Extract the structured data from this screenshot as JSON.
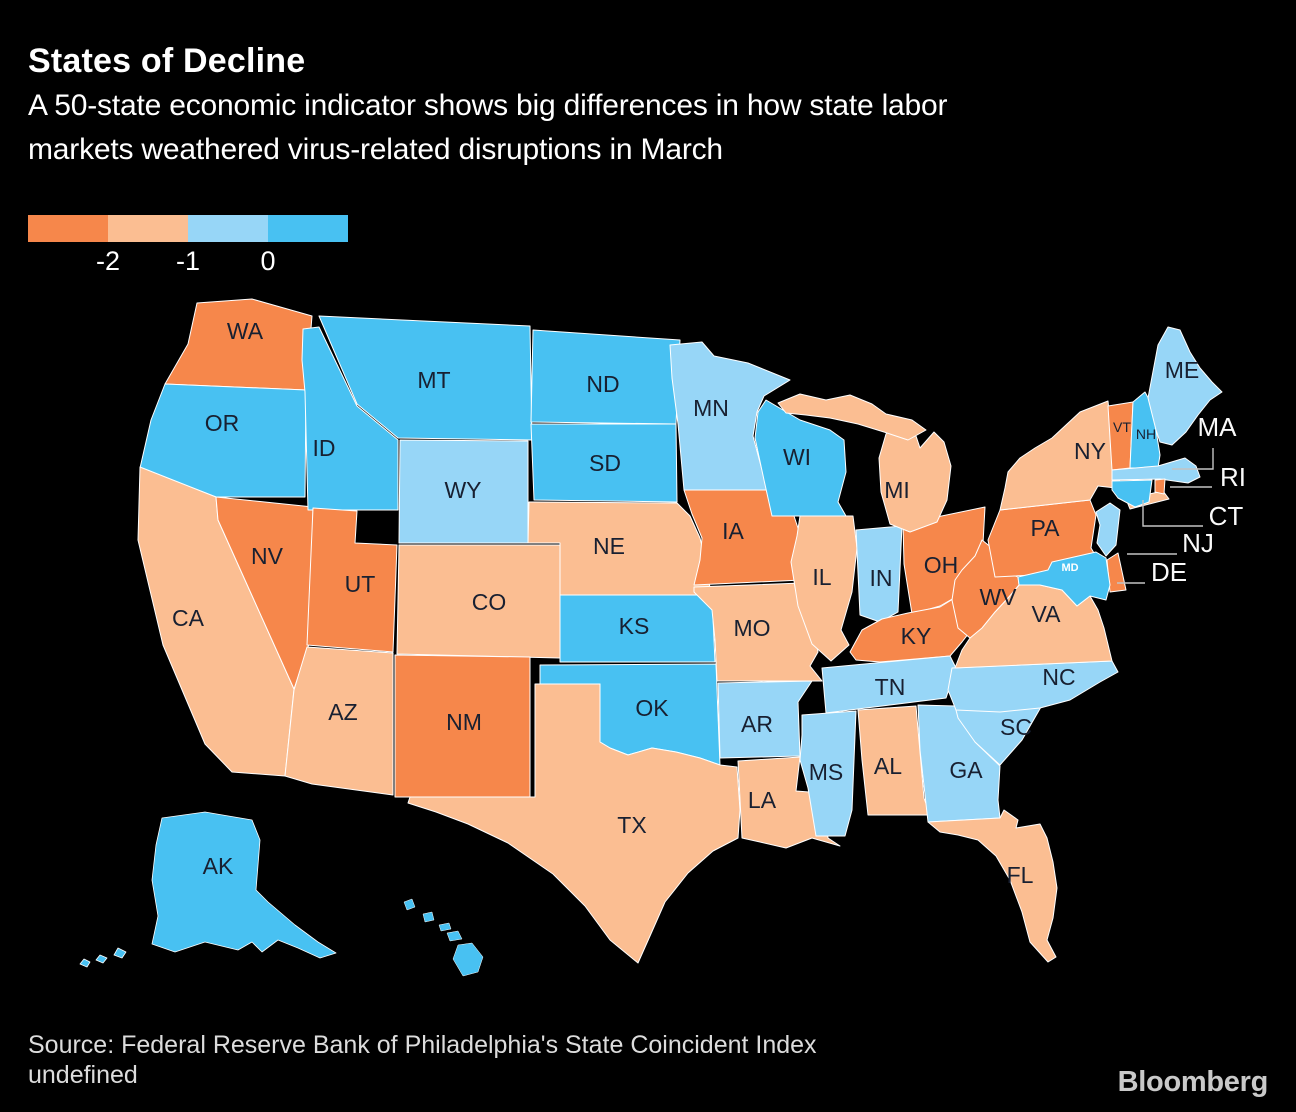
{
  "title": "States of Decline",
  "subtitle_lines": [
    "A 50-state economic indicator shows big differences in how state labor",
    "markets weathered virus-related disruptions in March"
  ],
  "legend": {
    "ticks": [
      "-2",
      "-1",
      "0"
    ]
  },
  "source_lines": [
    "Source: Federal Reserve Bank of Philadelphia's State Coincident Index",
    "undefined"
  ],
  "brand": "Bloomberg",
  "colors": {
    "background": "#000000",
    "state_border": "#ffffff",
    "label_dark": "#182031",
    "label_light": "#fafafa",
    "leader_line": "#c4c4c4",
    "source_text": "#dcdcdc",
    "brand_text": "#c9c9c9"
  },
  "chart_data": {
    "type": "choropleth",
    "title": "States of Decline",
    "region": "United States",
    "legend_thresholds": [
      -2,
      -1,
      0
    ],
    "legend_position": "top-left",
    "bins": [
      {
        "id": "below_-2",
        "range": "< -2",
        "color": "#F6874B"
      },
      {
        "id": "-2_to_-1",
        "range": "-2 to -1",
        "color": "#FBBE92"
      },
      {
        "id": "-1_to_0",
        "range": "-1 to 0",
        "color": "#97D6F7"
      },
      {
        "id": "above_0",
        "range": "> 0",
        "color": "#48C1F2"
      }
    ],
    "states": [
      {
        "abbr": "WA",
        "bin": "below_-2"
      },
      {
        "abbr": "OR",
        "bin": "above_0"
      },
      {
        "abbr": "CA",
        "bin": "-2_to_-1"
      },
      {
        "abbr": "NV",
        "bin": "below_-2"
      },
      {
        "abbr": "ID",
        "bin": "above_0"
      },
      {
        "abbr": "MT",
        "bin": "above_0"
      },
      {
        "abbr": "WY",
        "bin": "-1_to_0"
      },
      {
        "abbr": "UT",
        "bin": "below_-2"
      },
      {
        "abbr": "CO",
        "bin": "-2_to_-1"
      },
      {
        "abbr": "AZ",
        "bin": "-2_to_-1"
      },
      {
        "abbr": "NM",
        "bin": "below_-2"
      },
      {
        "abbr": "ND",
        "bin": "above_0"
      },
      {
        "abbr": "SD",
        "bin": "above_0"
      },
      {
        "abbr": "NE",
        "bin": "-2_to_-1"
      },
      {
        "abbr": "KS",
        "bin": "above_0"
      },
      {
        "abbr": "OK",
        "bin": "above_0"
      },
      {
        "abbr": "TX",
        "bin": "-2_to_-1"
      },
      {
        "abbr": "MN",
        "bin": "-1_to_0"
      },
      {
        "abbr": "IA",
        "bin": "below_-2"
      },
      {
        "abbr": "MO",
        "bin": "-2_to_-1"
      },
      {
        "abbr": "AR",
        "bin": "-1_to_0"
      },
      {
        "abbr": "LA",
        "bin": "-2_to_-1"
      },
      {
        "abbr": "WI",
        "bin": "above_0"
      },
      {
        "abbr": "IL",
        "bin": "-2_to_-1"
      },
      {
        "abbr": "IN",
        "bin": "-1_to_0"
      },
      {
        "abbr": "OH",
        "bin": "below_-2"
      },
      {
        "abbr": "MI",
        "bin": "-2_to_-1"
      },
      {
        "abbr": "KY",
        "bin": "below_-2"
      },
      {
        "abbr": "TN",
        "bin": "-1_to_0"
      },
      {
        "abbr": "MS",
        "bin": "-1_to_0"
      },
      {
        "abbr": "AL",
        "bin": "-2_to_-1"
      },
      {
        "abbr": "GA",
        "bin": "-1_to_0"
      },
      {
        "abbr": "FL",
        "bin": "-2_to_-1"
      },
      {
        "abbr": "SC",
        "bin": "-1_to_0"
      },
      {
        "abbr": "NC",
        "bin": "-1_to_0"
      },
      {
        "abbr": "VA",
        "bin": "-2_to_-1"
      },
      {
        "abbr": "WV",
        "bin": "below_-2"
      },
      {
        "abbr": "PA",
        "bin": "below_-2"
      },
      {
        "abbr": "NY",
        "bin": "-2_to_-1"
      },
      {
        "abbr": "VT",
        "bin": "below_-2"
      },
      {
        "abbr": "NH",
        "bin": "above_0"
      },
      {
        "abbr": "ME",
        "bin": "-1_to_0"
      },
      {
        "abbr": "MA",
        "bin": "-1_to_0"
      },
      {
        "abbr": "RI",
        "bin": "below_-2"
      },
      {
        "abbr": "CT",
        "bin": "above_0"
      },
      {
        "abbr": "NJ",
        "bin": "-1_to_0"
      },
      {
        "abbr": "DE",
        "bin": "below_-2"
      },
      {
        "abbr": "MD",
        "bin": "above_0"
      },
      {
        "abbr": "AK",
        "bin": "above_0"
      },
      {
        "abbr": "HI",
        "bin": "above_0"
      }
    ]
  }
}
